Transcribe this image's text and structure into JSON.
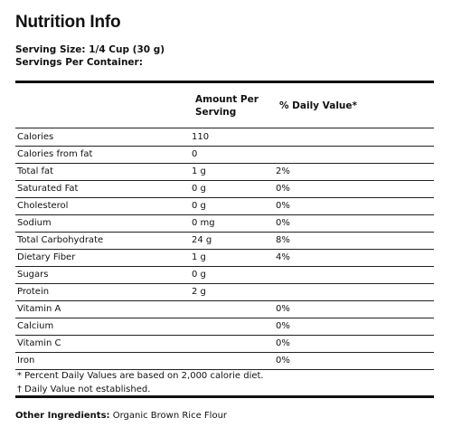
{
  "title": "Nutrition Info",
  "serving": {
    "size": "Serving Size: 1/4 Cup (30 g)",
    "per_container": "Servings Per Container:"
  },
  "headers": {
    "amount_line1": "Amount Per",
    "amount_line2": "Serving",
    "daily_value": "% Daily Value*"
  },
  "rows": [
    {
      "name": "Calories",
      "amount": "110",
      "dv": ""
    },
    {
      "name": "Calories from fat",
      "amount": "0",
      "dv": ""
    },
    {
      "name": "Total fat",
      "amount": "1 g",
      "dv": "2%"
    },
    {
      "name": "Saturated Fat",
      "amount": "0 g",
      "dv": "0%"
    },
    {
      "name": "Cholesterol",
      "amount": "0 g",
      "dv": "0%"
    },
    {
      "name": "Sodium",
      "amount": "0 mg",
      "dv": "0%"
    },
    {
      "name": "Total Carbohydrate",
      "amount": "24 g",
      "dv": "8%"
    },
    {
      "name": "Dietary Fiber",
      "amount": "1 g",
      "dv": "4%"
    },
    {
      "name": "Sugars",
      "amount": "0 g",
      "dv": ""
    },
    {
      "name": "Protein",
      "amount": "2 g",
      "dv": ""
    },
    {
      "name": "Vitamin A",
      "amount": "",
      "dv": "0%"
    },
    {
      "name": "Calcium",
      "amount": "",
      "dv": "0%"
    },
    {
      "name": "Vitamin C",
      "amount": "",
      "dv": "0%"
    },
    {
      "name": "Iron",
      "amount": "",
      "dv": "0%"
    }
  ],
  "footnotes": {
    "line1": "* Percent Daily Values are based on 2,000 calorie diet.",
    "line2": "† Daily Value not established."
  },
  "other_ingredients": {
    "label": "Other Ingredients:",
    "value": "Organic Brown Rice Flour"
  }
}
